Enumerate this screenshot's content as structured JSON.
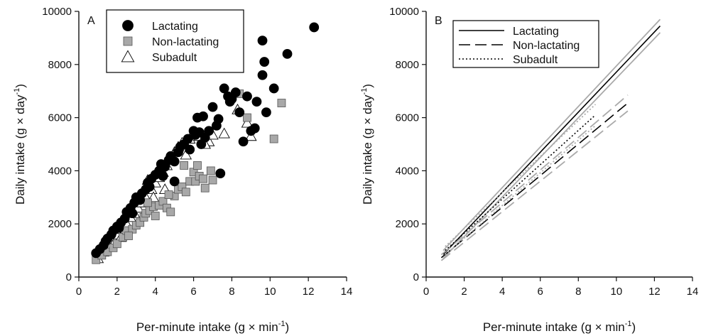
{
  "chart_data": [
    {
      "type": "scatter",
      "panel_label": "A",
      "xlabel_main": "Per-minute intake (g × min",
      "xlabel_sup": "-1",
      "xlabel_close": ")",
      "ylabel_main": "Daily intake (g × day",
      "ylabel_sup": "-1",
      "ylabel_close": ")",
      "xlim": [
        0,
        14
      ],
      "ylim": [
        0,
        10000
      ],
      "xticks": [
        "0",
        "2",
        "4",
        "6",
        "8",
        "10",
        "12",
        "14"
      ],
      "yticks": [
        "0",
        "2000",
        "4000",
        "6000",
        "8000",
        "10000"
      ],
      "legend_position": "top-left",
      "series": [
        {
          "name": "Lactating",
          "marker": "circle",
          "color": "#000000",
          "points": [
            [
              0.9,
              900
            ],
            [
              1.1,
              1050
            ],
            [
              1.3,
              1200
            ],
            [
              1.5,
              1450
            ],
            [
              1.7,
              1600
            ],
            [
              1.4,
              1350
            ],
            [
              1.8,
              1750
            ],
            [
              2.0,
              1900
            ],
            [
              2.2,
              2050
            ],
            [
              2.4,
              2200
            ],
            [
              2.5,
              2450
            ],
            [
              2.7,
              2600
            ],
            [
              2.9,
              2800
            ],
            [
              3.0,
              3000
            ],
            [
              3.2,
              2900
            ],
            [
              3.3,
              3150
            ],
            [
              3.5,
              3300
            ],
            [
              3.6,
              3550
            ],
            [
              3.8,
              3700
            ],
            [
              4.0,
              3850
            ],
            [
              4.2,
              4000
            ],
            [
              4.3,
              4250
            ],
            [
              4.5,
              4150
            ],
            [
              4.7,
              4400
            ],
            [
              4.8,
              4550
            ],
            [
              5.0,
              4350
            ],
            [
              5.2,
              4700
            ],
            [
              5.3,
              4900
            ],
            [
              5.5,
              5000
            ],
            [
              5.7,
              5200
            ],
            [
              5.8,
              4800
            ],
            [
              6.0,
              5500
            ],
            [
              6.1,
              5350
            ],
            [
              6.2,
              6000
            ],
            [
              6.3,
              5450
            ],
            [
              6.5,
              6050
            ],
            [
              6.6,
              5250
            ],
            [
              6.8,
              5500
            ],
            [
              7.0,
              6400
            ],
            [
              7.3,
              5950
            ],
            [
              7.4,
              3900
            ],
            [
              7.6,
              7100
            ],
            [
              7.8,
              6800
            ],
            [
              7.9,
              6600
            ],
            [
              8.0,
              6700
            ],
            [
              8.2,
              6950
            ],
            [
              8.4,
              6200
            ],
            [
              8.6,
              5100
            ],
            [
              8.8,
              6800
            ],
            [
              9.0,
              5500
            ],
            [
              9.2,
              5600
            ],
            [
              9.3,
              6600
            ],
            [
              9.6,
              7600
            ],
            [
              9.6,
              8900
            ],
            [
              9.7,
              8100
            ],
            [
              9.8,
              6200
            ],
            [
              10.2,
              7100
            ],
            [
              10.9,
              8400
            ],
            [
              12.3,
              9400
            ],
            [
              5.0,
              3600
            ],
            [
              4.4,
              3800
            ],
            [
              3.7,
              3400
            ],
            [
              2.8,
              2400
            ],
            [
              2.1,
              1850
            ],
            [
              6.4,
              5000
            ],
            [
              7.2,
              5700
            ]
          ]
        },
        {
          "name": "Non-lactating",
          "marker": "square",
          "color": "#a8a8a8",
          "points": [
            [
              0.9,
              650
            ],
            [
              1.2,
              820
            ],
            [
              1.5,
              950
            ],
            [
              1.8,
              1100
            ],
            [
              2.0,
              1250
            ],
            [
              2.3,
              1500
            ],
            [
              2.5,
              1750
            ],
            [
              2.8,
              1800
            ],
            [
              3.0,
              1950
            ],
            [
              3.2,
              2050
            ],
            [
              3.4,
              2250
            ],
            [
              3.5,
              2400
            ],
            [
              3.7,
              2500
            ],
            [
              3.9,
              2650
            ],
            [
              4.0,
              2300
            ],
            [
              4.2,
              2700
            ],
            [
              4.4,
              2850
            ],
            [
              4.6,
              2600
            ],
            [
              4.8,
              2450
            ],
            [
              5.0,
              3050
            ],
            [
              5.2,
              3300
            ],
            [
              5.4,
              3400
            ],
            [
              5.6,
              3200
            ],
            [
              5.8,
              3600
            ],
            [
              6.0,
              3950
            ],
            [
              6.1,
              3600
            ],
            [
              6.3,
              3800
            ],
            [
              6.5,
              3700
            ],
            [
              6.6,
              3350
            ],
            [
              6.9,
              4000
            ],
            [
              7.0,
              3650
            ],
            [
              8.4,
              6900
            ],
            [
              8.8,
              6000
            ],
            [
              10.2,
              5200
            ],
            [
              10.6,
              6550
            ],
            [
              5.5,
              4200
            ],
            [
              4.7,
              3100
            ],
            [
              3.6,
              2800
            ],
            [
              6.2,
              4200
            ],
            [
              2.6,
              1550
            ]
          ]
        },
        {
          "name": "Subadult",
          "marker": "triangle",
          "color": "#ffffff",
          "points": [
            [
              1.0,
              700
            ],
            [
              1.3,
              950
            ],
            [
              1.6,
              1150
            ],
            [
              1.9,
              1350
            ],
            [
              2.1,
              1600
            ],
            [
              2.3,
              1800
            ],
            [
              2.5,
              2000
            ],
            [
              2.7,
              2250
            ],
            [
              2.9,
              2400
            ],
            [
              3.1,
              2600
            ],
            [
              3.3,
              2800
            ],
            [
              3.5,
              3000
            ],
            [
              3.6,
              3650
            ],
            [
              3.8,
              3300
            ],
            [
              4.0,
              3550
            ],
            [
              4.2,
              3750
            ],
            [
              4.4,
              3950
            ],
            [
              4.6,
              4200
            ],
            [
              4.8,
              4400
            ],
            [
              5.0,
              4700
            ],
            [
              5.2,
              4900
            ],
            [
              5.4,
              5050
            ],
            [
              5.6,
              4600
            ],
            [
              5.8,
              5200
            ],
            [
              6.0,
              5400
            ],
            [
              6.3,
              5300
            ],
            [
              6.8,
              5100
            ],
            [
              7.0,
              5350
            ],
            [
              7.6,
              5400
            ],
            [
              8.3,
              6300
            ],
            [
              8.8,
              5800
            ],
            [
              9.0,
              5300
            ],
            [
              4.5,
              3300
            ],
            [
              3.9,
              3000
            ],
            [
              2.2,
              1500
            ],
            [
              6.6,
              5000
            ]
          ]
        }
      ]
    },
    {
      "type": "line",
      "panel_label": "B",
      "xlabel_main": "Per-minute intake (g × min",
      "xlabel_sup": "-1",
      "xlabel_close": ")",
      "ylabel_main": "Daily intake (g × day",
      "ylabel_sup": "-1",
      "ylabel_close": ")",
      "xlim": [
        0,
        14
      ],
      "ylim": [
        0,
        10000
      ],
      "xticks": [
        "0",
        "2",
        "4",
        "6",
        "8",
        "10",
        "12",
        "14"
      ],
      "yticks": [
        "0",
        "2000",
        "4000",
        "6000",
        "8000",
        "10000"
      ],
      "legend_position": "top-left",
      "ci_color": "#aaaaaa",
      "series": [
        {
          "name": "Lactating",
          "dash": "solid",
          "x": [
            0.9,
            12.3
          ],
          "y": [
            850,
            9450
          ],
          "ci_lower": [
            700,
            9200
          ],
          "ci_upper": [
            1000,
            9700
          ]
        },
        {
          "name": "Non-lactating",
          "dash": "long-dash",
          "x": [
            0.8,
            10.6
          ],
          "y": [
            730,
            6550
          ],
          "ci_lower": [
            620,
            6250
          ],
          "ci_upper": [
            840,
            6850
          ]
        },
        {
          "name": "Subadult",
          "dash": "dotted",
          "x": [
            1.0,
            8.9
          ],
          "y": [
            1000,
            6100
          ],
          "ci_lower": [
            850,
            5700
          ],
          "ci_upper": [
            1150,
            6500
          ]
        }
      ]
    }
  ]
}
